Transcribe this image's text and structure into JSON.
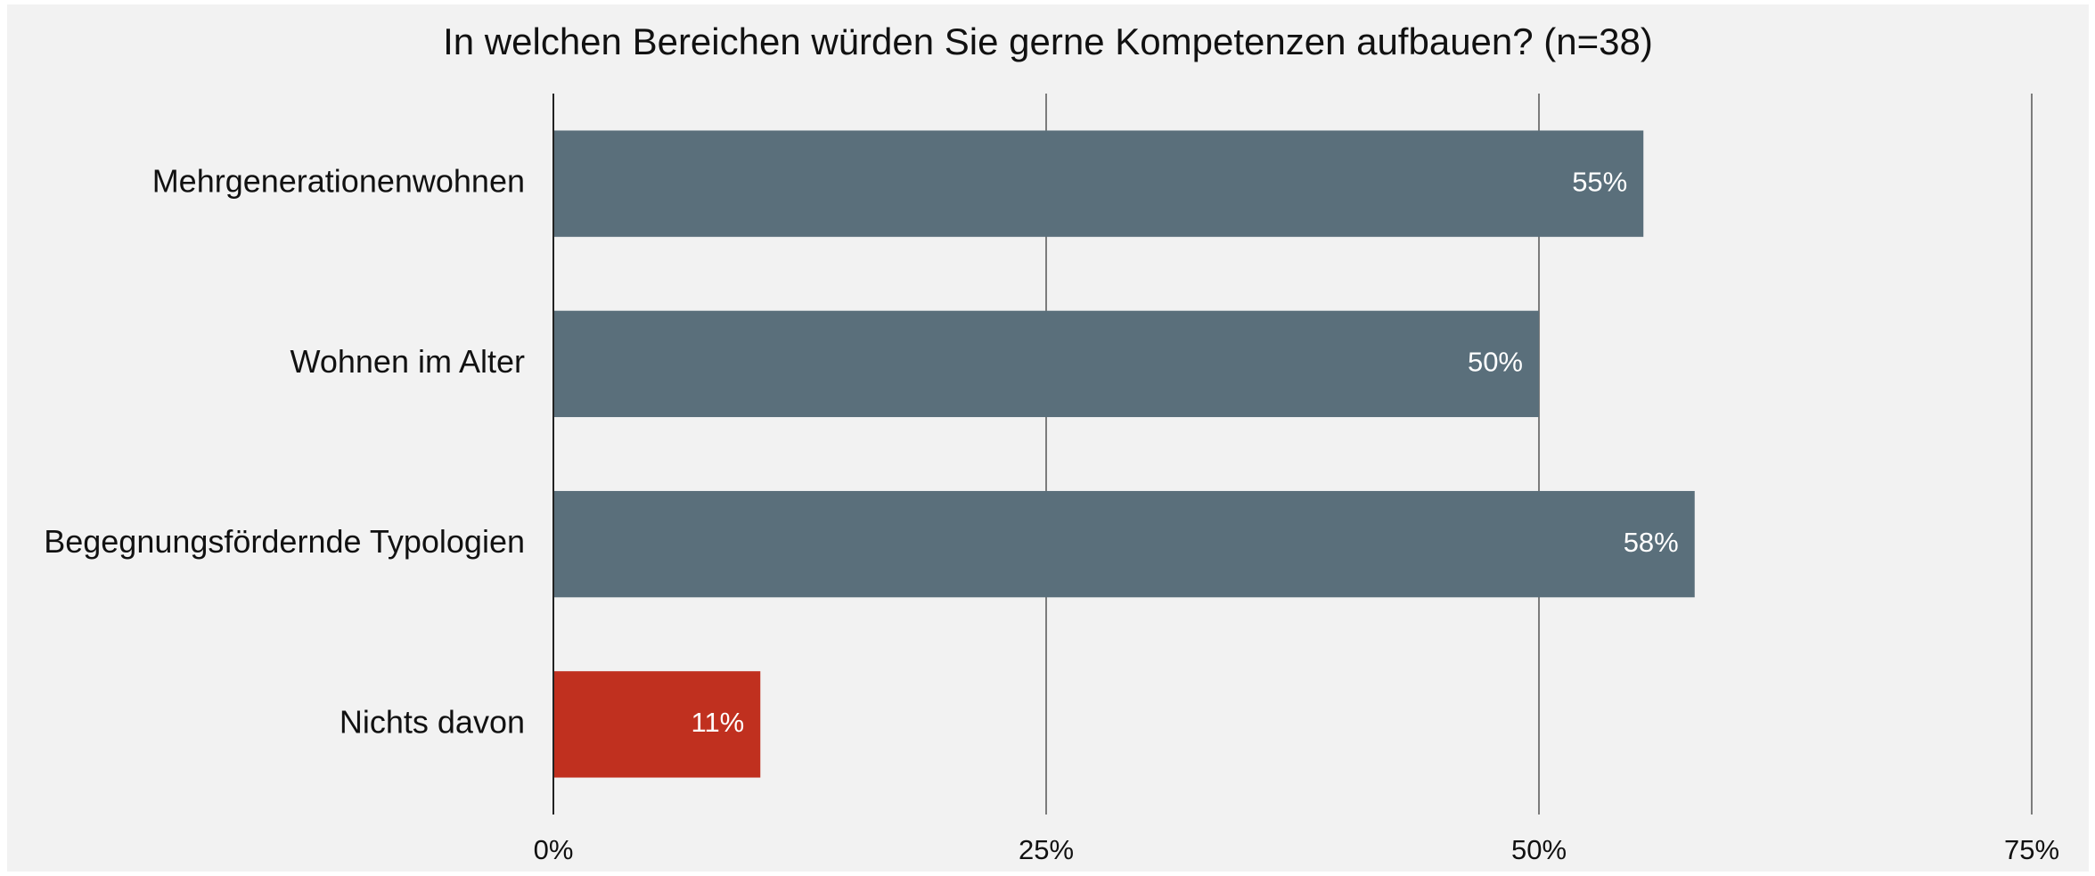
{
  "chart_data": {
    "type": "bar",
    "orientation": "horizontal",
    "title": "In welchen Bereichen würden Sie gerne Kompetenzen aufbauen? (n=38)",
    "categories": [
      "Mehrgenerationenwohnen",
      "Wohnen im Alter",
      "Begegnungsfördernde Typologien",
      "Nichts davon"
    ],
    "values": [
      55.3,
      50,
      57.9,
      10.5
    ],
    "value_labels": [
      "55%",
      "50%",
      "58%",
      "11%"
    ],
    "colors": [
      "#5a6f7b",
      "#5a6f7b",
      "#5a6f7b",
      "#c0301f"
    ],
    "xlim": [
      0,
      75
    ],
    "xticks": [
      {
        "value": 0,
        "label": "0%"
      },
      {
        "value": 25,
        "label": "25%"
      },
      {
        "value": 50,
        "label": "50%"
      },
      {
        "value": 75,
        "label": "75%"
      }
    ],
    "grid": true
  }
}
